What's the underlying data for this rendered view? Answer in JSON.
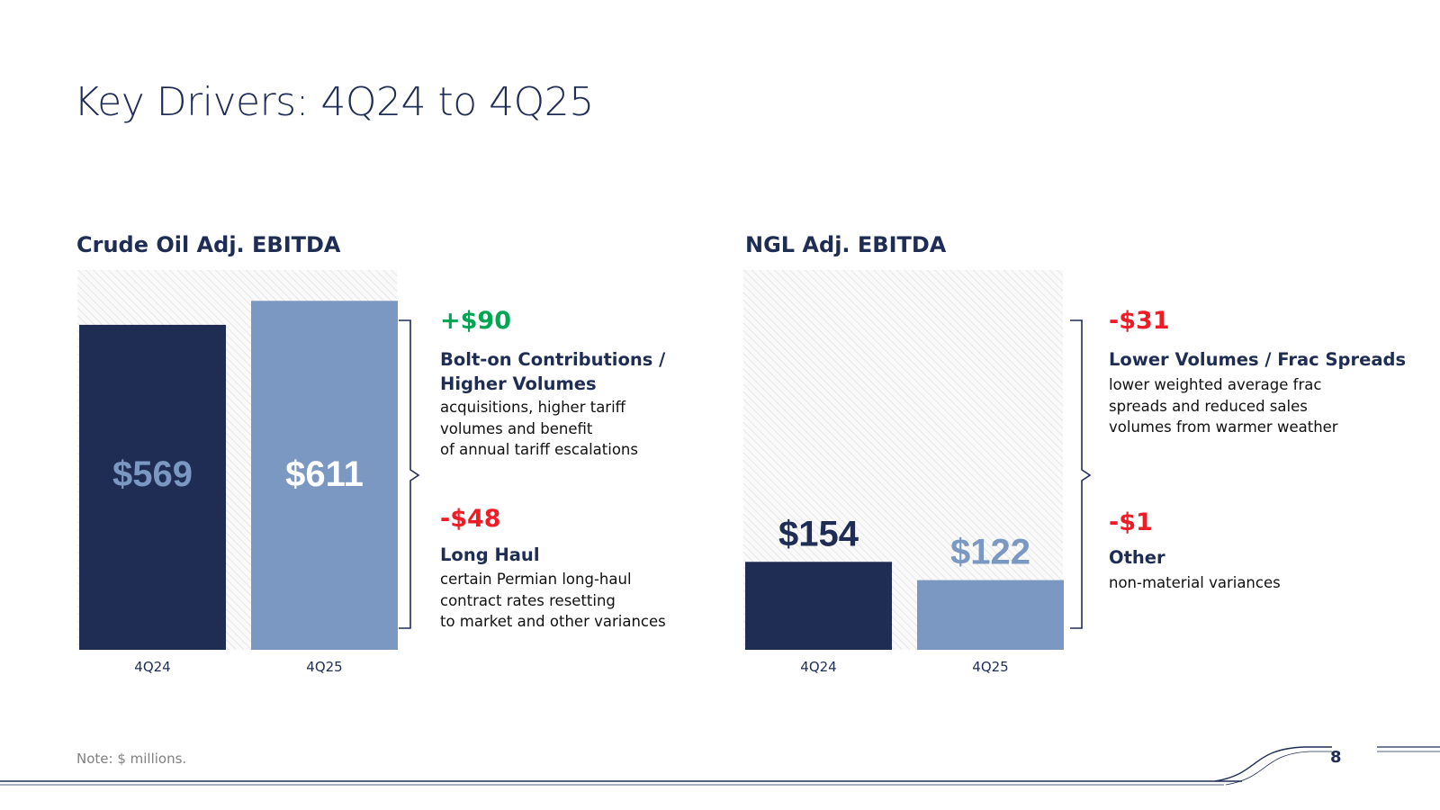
{
  "page": {
    "title": "Key Drivers: 4Q24 to 4Q25",
    "note": "Note: $ millions.",
    "page_number": "8"
  },
  "colors": {
    "dark_navy": "#1f2d55",
    "light_blue": "#7b98c2",
    "positive_green": "#00a651",
    "negative_red": "#ee1c24",
    "hatch_background": "#ededed"
  },
  "chart_data": [
    {
      "type": "bar",
      "title": "Crude Oil Adj. EBITDA",
      "categories": [
        "4Q24",
        "4Q25"
      ],
      "values": [
        569,
        611
      ],
      "value_labels": [
        "$569",
        "$611"
      ],
      "ylim": [
        0,
        665
      ],
      "label_position": "inside",
      "drivers": [
        {
          "amount": "+$90",
          "direction": "positive",
          "title": "Bolt-on Contributions / Higher Volumes",
          "description": "acquisitions, higher tariff\nvolumes and benefit\nof annual tariff escalations"
        },
        {
          "amount": "-$48",
          "direction": "negative",
          "title": "Long Haul",
          "description": "certain Permian long-haul\ncontract rates resetting\nto market and other variances"
        }
      ]
    },
    {
      "type": "bar",
      "title": "NGL Adj. EBITDA",
      "categories": [
        "4Q24",
        "4Q25"
      ],
      "values": [
        154,
        122
      ],
      "value_labels": [
        "$154",
        "$122"
      ],
      "ylim": [
        0,
        665
      ],
      "label_position": "above",
      "drivers": [
        {
          "amount": "-$31",
          "direction": "negative",
          "title": "Lower Volumes / Frac Spreads",
          "description": "lower weighted average frac\nspreads and reduced sales\nvolumes from warmer weather"
        },
        {
          "amount": "-$1",
          "direction": "negative",
          "title": "Other",
          "description": "non-material variances"
        }
      ]
    }
  ]
}
